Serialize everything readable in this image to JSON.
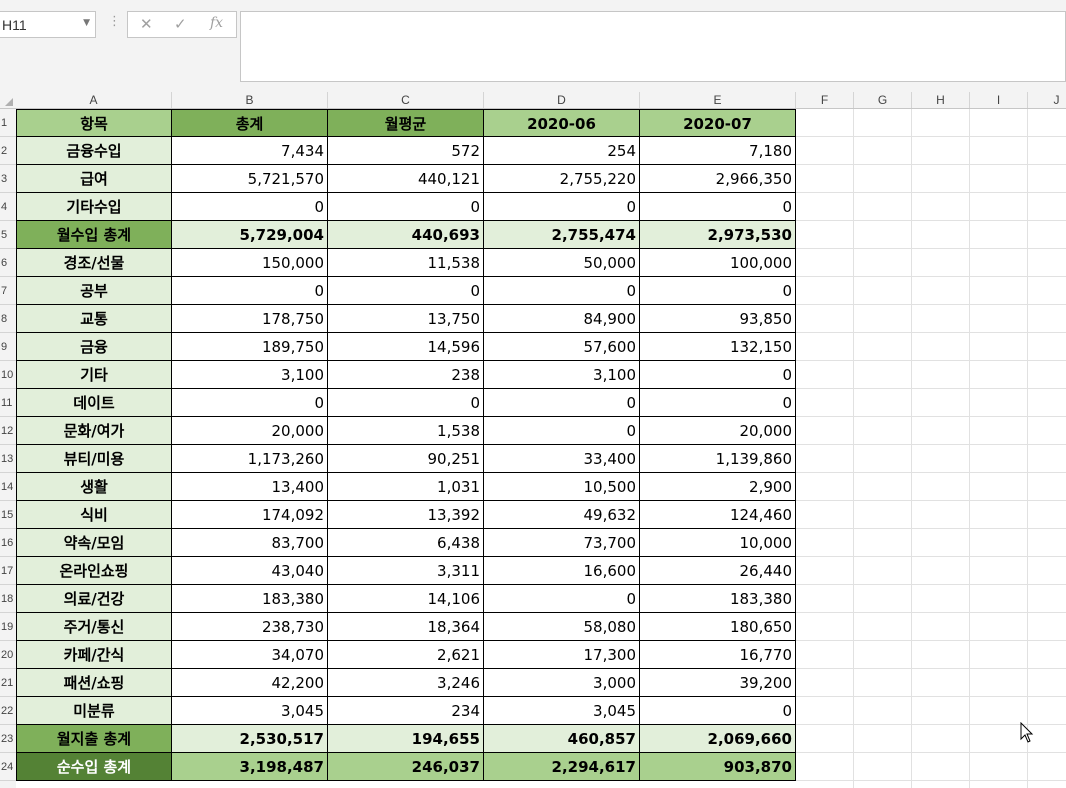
{
  "name_box": "H11",
  "formula_buttons": {
    "cancel": "✕",
    "enter": "✓",
    "fx": "fx"
  },
  "formula_content": "",
  "columns": [
    "A",
    "B",
    "C",
    "D",
    "E",
    "F",
    "G",
    "H",
    "I",
    "J"
  ],
  "rows": [
    "1",
    "2",
    "3",
    "4",
    "5",
    "6",
    "7",
    "8",
    "9",
    "10",
    "11",
    "12",
    "13",
    "14",
    "15",
    "16",
    "17",
    "18",
    "19",
    "20",
    "21",
    "22",
    "23",
    "24"
  ],
  "colors": {
    "header_dark": "#7fb05a",
    "header_light": "#a9d08e",
    "label_light": "#e2efda",
    "total_label": "#7fb05a",
    "net_label": "#548235"
  },
  "sheet": {
    "header": [
      "항목",
      "총계",
      "월평균",
      "2020-06",
      "2020-07"
    ],
    "rows": [
      {
        "label": "금융수입",
        "values": [
          "7,434",
          "572",
          "254",
          "7,180"
        ],
        "kind": "normal"
      },
      {
        "label": "급여",
        "values": [
          "5,721,570",
          "440,121",
          "2,755,220",
          "2,966,350"
        ],
        "kind": "normal"
      },
      {
        "label": "기타수입",
        "values": [
          "0",
          "0",
          "0",
          "0"
        ],
        "kind": "normal"
      },
      {
        "label": "월수입 총계",
        "values": [
          "5,729,004",
          "440,693",
          "2,755,474",
          "2,973,530"
        ],
        "kind": "total"
      },
      {
        "label": "경조/선물",
        "values": [
          "150,000",
          "11,538",
          "50,000",
          "100,000"
        ],
        "kind": "normal"
      },
      {
        "label": "공부",
        "values": [
          "0",
          "0",
          "0",
          "0"
        ],
        "kind": "normal"
      },
      {
        "label": "교통",
        "values": [
          "178,750",
          "13,750",
          "84,900",
          "93,850"
        ],
        "kind": "normal"
      },
      {
        "label": "금융",
        "values": [
          "189,750",
          "14,596",
          "57,600",
          "132,150"
        ],
        "kind": "normal"
      },
      {
        "label": "기타",
        "values": [
          "3,100",
          "238",
          "3,100",
          "0"
        ],
        "kind": "normal"
      },
      {
        "label": "데이트",
        "values": [
          "0",
          "0",
          "0",
          "0"
        ],
        "kind": "normal"
      },
      {
        "label": "문화/여가",
        "values": [
          "20,000",
          "1,538",
          "0",
          "20,000"
        ],
        "kind": "normal"
      },
      {
        "label": "뷰티/미용",
        "values": [
          "1,173,260",
          "90,251",
          "33,400",
          "1,139,860"
        ],
        "kind": "normal"
      },
      {
        "label": "생활",
        "values": [
          "13,400",
          "1,031",
          "10,500",
          "2,900"
        ],
        "kind": "normal"
      },
      {
        "label": "식비",
        "values": [
          "174,092",
          "13,392",
          "49,632",
          "124,460"
        ],
        "kind": "normal"
      },
      {
        "label": "약속/모임",
        "values": [
          "83,700",
          "6,438",
          "73,700",
          "10,000"
        ],
        "kind": "normal"
      },
      {
        "label": "온라인쇼핑",
        "values": [
          "43,040",
          "3,311",
          "16,600",
          "26,440"
        ],
        "kind": "normal"
      },
      {
        "label": "의료/건강",
        "values": [
          "183,380",
          "14,106",
          "0",
          "183,380"
        ],
        "kind": "normal"
      },
      {
        "label": "주거/통신",
        "values": [
          "238,730",
          "18,364",
          "58,080",
          "180,650"
        ],
        "kind": "normal"
      },
      {
        "label": "카페/간식",
        "values": [
          "34,070",
          "2,621",
          "17,300",
          "16,770"
        ],
        "kind": "normal"
      },
      {
        "label": "패션/쇼핑",
        "values": [
          "42,200",
          "3,246",
          "3,000",
          "39,200"
        ],
        "kind": "normal"
      },
      {
        "label": "미분류",
        "values": [
          "3,045",
          "234",
          "3,045",
          "0"
        ],
        "kind": "normal"
      },
      {
        "label": "월지출 총계",
        "values": [
          "2,530,517",
          "194,655",
          "460,857",
          "2,069,660"
        ],
        "kind": "total"
      },
      {
        "label": "순수입 총계",
        "values": [
          "3,198,487",
          "246,037",
          "2,294,617",
          "903,870"
        ],
        "kind": "net"
      }
    ]
  }
}
